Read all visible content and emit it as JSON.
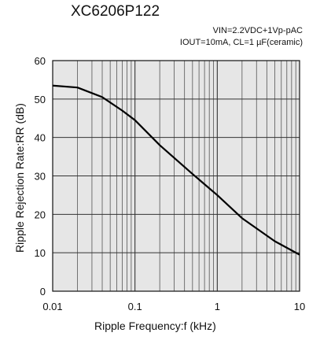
{
  "chart_data": {
    "type": "line",
    "title": "XC6206P122",
    "conditions": [
      "VIN=2.2VDC+1Vp-pAC",
      "IOUT=10mA, CL=1 µF(ceramic)"
    ],
    "xlabel": "Ripple Frequency:f (kHz)",
    "ylabel": "Ripple Rejection Rate:RR (dB)",
    "xscale": "log",
    "xlim": [
      0.01,
      10
    ],
    "ylim": [
      0,
      60
    ],
    "grid": true,
    "x_ticks": [
      "0.01",
      "0.1",
      "1",
      "10"
    ],
    "y_ticks": [
      "0",
      "10",
      "20",
      "30",
      "40",
      "50",
      "60"
    ],
    "series": [
      {
        "x": [
          0.01,
          0.02,
          0.04,
          0.07,
          0.1,
          0.2,
          0.5,
          1,
          2,
          5,
          10
        ],
        "values": [
          53.5,
          53,
          50.5,
          47,
          44.5,
          38,
          30.5,
          25,
          19,
          13,
          9.5
        ]
      }
    ],
    "colors": {
      "line": "#000000",
      "plot_bg": "#e6e6e6",
      "grid": "#555555"
    }
  }
}
